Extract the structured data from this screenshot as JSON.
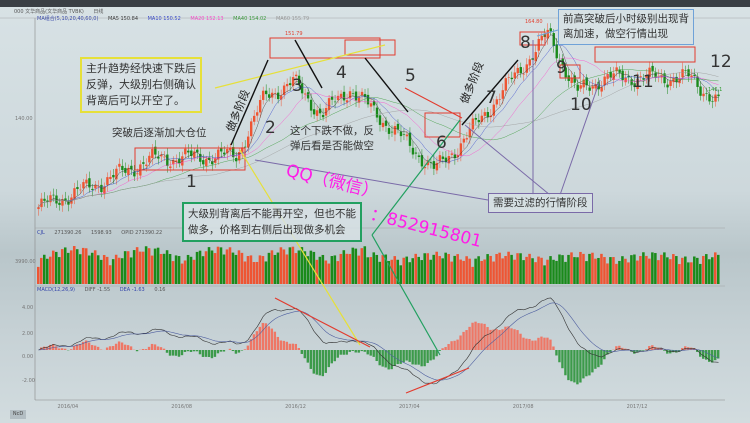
{
  "header": {
    "symbol": "000 文华商品(文华商品 TVBK)",
    "period": "日线"
  },
  "ma_legend": [
    {
      "label": "MA组合(5,10,20,40,60,0)",
      "color": "#3344aa"
    },
    {
      "label": "MA5 150.84",
      "color": "#333333"
    },
    {
      "label": "MA10 150.52",
      "color": "#3344cc"
    },
    {
      "label": "MA20 152.13",
      "color": "#ff44cc"
    },
    {
      "label": "MA40 154.02",
      "color": "#339933"
    },
    {
      "label": "MA60 155.79",
      "color": "#999999"
    }
  ],
  "volume_legend": {
    "name": "CJL",
    "value1": "271390.26",
    "value2": "1598.93",
    "opid": "OPID 271390.22"
  },
  "macd_legend": {
    "name": "MACD(12,26,9)",
    "diff": "DIFF -1.55",
    "dea": "DEA -1.63",
    "macd": "0.16"
  },
  "annotations": {
    "yellow_box": [
      "主升趋势经快速下跌后",
      "反弹，大级别右侧确认",
      "背离后可以开空了。"
    ],
    "long_stage_1": "做多阶段",
    "long_stage_2": "做多阶段",
    "add_position": "突破后逐渐加大仓位",
    "no_trade": [
      "这个下跌不做，反",
      "弹后看是否能做空"
    ],
    "green_box": [
      "大级别背离后不能再开空，但也不能",
      "做多，价格到右侧后出现做多机会"
    ],
    "purple_box": "需要过滤的行情阶段",
    "blue_box": [
      "前高突破后小时级别出现背",
      "离加速，做空行情出现"
    ],
    "watermark_1": "QQ（微信）",
    "watermark_2": "：852915801",
    "phase_numbers": [
      "1",
      "2",
      "3",
      "4",
      "5",
      "6",
      "7",
      "8",
      "9",
      "10",
      "11",
      "12"
    ]
  },
  "bottom_button": "NcD",
  "colors": {
    "up": "#ee5533",
    "down": "#1a8a1a",
    "box_red": "#e23b2e",
    "yellow": "#e6e03a",
    "green": "#22a060",
    "purple": "#7a6aa8",
    "blue": "#6fa2d8",
    "watermark": "#ff1de8"
  },
  "chart_data": {
    "type": "candlestick",
    "title": "",
    "x_range": [
      "2016-03",
      "2018-03"
    ],
    "x_tick_labels": [
      "2016/04",
      "2016/08",
      "2016/12",
      "2017/04",
      "2017/08",
      "2017/12"
    ],
    "y_tick_labels": {
      "price": [
        "140.00"
      ],
      "volume": [
        "3990.00"
      ],
      "macd": [
        "4.00",
        "2.00",
        "0.00",
        "-2.00"
      ]
    },
    "price_labels": [
      "151.79",
      "164.80",
      "146.1"
    ],
    "ylim": [
      114,
      168
    ],
    "close_keypoints": [
      {
        "x": "2016-03",
        "y": 118
      },
      {
        "x": "2016-05",
        "y": 124
      },
      {
        "x": "2016-07",
        "y": 131
      },
      {
        "x": "2016-10",
        "y": 132
      },
      {
        "x": "2016-11",
        "y": 148
      },
      {
        "x": "2016-12",
        "y": 151.79
      },
      {
        "x": "2017-01",
        "y": 143
      },
      {
        "x": "2017-02",
        "y": 150
      },
      {
        "x": "2017-05",
        "y": 128
      },
      {
        "x": "2017-06",
        "y": 136
      },
      {
        "x": "2017-09",
        "y": 164.8
      },
      {
        "x": "2017-10",
        "y": 149
      },
      {
        "x": "2017-11",
        "y": 153
      },
      {
        "x": "2018-02",
        "y": 153
      },
      {
        "x": "2018-03",
        "y": 146.1
      }
    ],
    "indicators": [
      "MA5",
      "MA10",
      "MA20",
      "MA40",
      "MA60",
      "Volume",
      "MACD"
    ],
    "grid": false
  }
}
